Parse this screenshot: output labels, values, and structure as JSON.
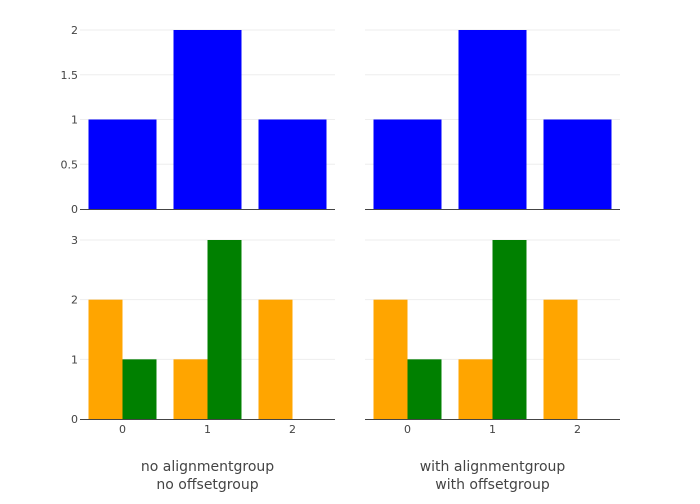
{
  "chart_data": {
    "type": "bar",
    "grid": true,
    "legend": "none",
    "categories": [
      0,
      1,
      2
    ],
    "x_tick_labels": [
      "0",
      "1",
      "2"
    ],
    "x_titles": [
      [
        "no alignmentgroup",
        "no offsetgroup"
      ],
      [
        "with alignmentgroup",
        "with offsetgroup"
      ]
    ],
    "rows": [
      {
        "ylim": [
          0,
          2
        ],
        "y_ticks": [
          0,
          0.5,
          1,
          1.5,
          2
        ],
        "y_tick_labels": [
          "0",
          "0.5",
          "1",
          "1.5",
          "2"
        ],
        "panels": [
          {
            "series": [
              {
                "values": [
                  1,
                  2,
                  1
                ],
                "color": "#0000ff"
              }
            ]
          },
          {
            "series": [
              {
                "values": [
                  1,
                  2,
                  1
                ],
                "color": "#0000ff"
              }
            ]
          }
        ]
      },
      {
        "ylim": [
          0,
          3
        ],
        "y_ticks": [
          0,
          1,
          2,
          3
        ],
        "y_tick_labels": [
          "0",
          "1",
          "2",
          "3"
        ],
        "panels": [
          {
            "series": [
              {
                "values": [
                  2,
                  1,
                  2
                ],
                "color": "#ffa500"
              },
              {
                "values": [
                  1,
                  3,
                  null
                ],
                "color": "#008000"
              }
            ]
          },
          {
            "series": [
              {
                "values": [
                  2,
                  1,
                  2
                ],
                "color": "#ffa500"
              },
              {
                "values": [
                  1,
                  3,
                  null
                ],
                "color": "#008000"
              }
            ]
          }
        ]
      }
    ]
  }
}
